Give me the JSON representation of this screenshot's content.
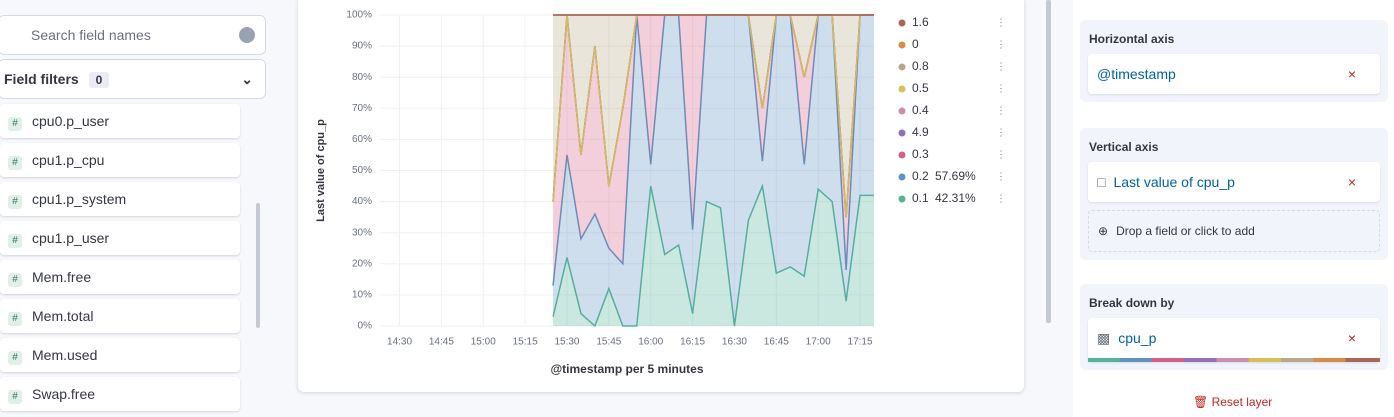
{
  "sidebar": {
    "search_placeholder": "Search field names",
    "filters_label": "Field filters",
    "filters_count": 0,
    "fields": [
      "cpu0.p_user",
      "cpu1.p_cpu",
      "cpu1.p_system",
      "cpu1.p_user",
      "Mem.free",
      "Mem.total",
      "Mem.used",
      "Swap.free"
    ]
  },
  "chart_data": {
    "type": "area",
    "stacked": true,
    "xlabel": "@timestamp per 5 minutes",
    "ylabel": "Last value of cpu_p",
    "x": [
      925,
      930,
      935,
      940,
      945,
      950,
      955,
      960,
      965,
      970,
      975,
      980,
      985,
      990,
      995,
      1000,
      1005,
      1010,
      1015,
      1020,
      1025,
      1030,
      1035,
      1040
    ],
    "xlim": [
      863,
      1040
    ],
    "xticks": [
      {
        "value": 870,
        "label": "14:30"
      },
      {
        "value": 885,
        "label": "14:45"
      },
      {
        "value": 900,
        "label": "15:00"
      },
      {
        "value": 915,
        "label": "15:15"
      },
      {
        "value": 930,
        "label": "15:30"
      },
      {
        "value": 945,
        "label": "15:45"
      },
      {
        "value": 960,
        "label": "16:00"
      },
      {
        "value": 975,
        "label": "16:15"
      },
      {
        "value": 990,
        "label": "16:30"
      },
      {
        "value": 1005,
        "label": "16:45"
      },
      {
        "value": 1020,
        "label": "17:00"
      },
      {
        "value": 1035,
        "label": "17:15"
      }
    ],
    "ylim": [
      0,
      100
    ],
    "yticks": [
      {
        "value": 0,
        "label": "0%"
      },
      {
        "value": 10,
        "label": "10%"
      },
      {
        "value": 20,
        "label": "20%"
      },
      {
        "value": 30,
        "label": "30%"
      },
      {
        "value": 40,
        "label": "40%"
      },
      {
        "value": 50,
        "label": "50%"
      },
      {
        "value": 60,
        "label": "60%"
      },
      {
        "value": 70,
        "label": "70%"
      },
      {
        "value": 80,
        "label": "80%"
      },
      {
        "value": 90,
        "label": "90%"
      },
      {
        "value": 100,
        "label": "100%"
      }
    ],
    "grid": true,
    "series": [
      {
        "name": "0.1",
        "color": "#54b399",
        "share_label": "42.31%",
        "values": [
          3,
          22,
          4,
          0,
          12,
          0,
          0,
          45,
          23,
          26,
          4,
          40,
          38,
          0,
          34,
          45,
          17,
          19,
          16,
          44,
          40,
          8,
          42,
          42
        ]
      },
      {
        "name": "0.2",
        "color": "#6092c0",
        "share_label": "57.69%",
        "values": [
          10,
          33,
          24,
          36,
          13,
          20,
          100,
          7,
          77,
          74,
          27,
          60,
          62,
          100,
          66,
          8,
          83,
          81,
          36,
          56,
          60,
          10,
          58,
          58
        ]
      },
      {
        "name": "0.3",
        "color": "#d36086",
        "values": [
          27,
          45,
          27,
          54,
          20,
          50,
          0,
          48,
          0,
          0,
          69,
          0,
          0,
          0,
          0,
          17,
          0,
          0,
          28,
          0,
          0,
          17,
          0,
          0
        ]
      },
      {
        "name": "4.9",
        "color": "#9170b8",
        "values": [
          0,
          0,
          0,
          0,
          0,
          0,
          0,
          0,
          0,
          0,
          0,
          0,
          0,
          0,
          0,
          0,
          0,
          0,
          0,
          0,
          0,
          0,
          0,
          0
        ]
      },
      {
        "name": "0.4",
        "color": "#ca8eae",
        "values": [
          0,
          0,
          0,
          0,
          0,
          0,
          0,
          0,
          0,
          0,
          0,
          0,
          0,
          0,
          0,
          0,
          0,
          0,
          0,
          0,
          0,
          0,
          0,
          0
        ]
      },
      {
        "name": "0.5",
        "color": "#d6bf57",
        "values": [
          0,
          0,
          0,
          0,
          0,
          0,
          0,
          0,
          0,
          0,
          0,
          0,
          0,
          0,
          0,
          0,
          0,
          0,
          0,
          0,
          0,
          0,
          0,
          0
        ]
      },
      {
        "name": "0.8",
        "color": "#b9a888",
        "values": [
          60,
          0,
          45,
          10,
          55,
          30,
          0,
          0,
          0,
          0,
          0,
          0,
          0,
          0,
          0,
          30,
          0,
          0,
          20,
          0,
          0,
          65,
          0,
          0
        ]
      },
      {
        "name": "0",
        "color": "#da8b45",
        "values": [
          0,
          0,
          0,
          0,
          0,
          0,
          0,
          0,
          0,
          0,
          0,
          0,
          0,
          0,
          0,
          0,
          0,
          0,
          0,
          0,
          0,
          0,
          0,
          0
        ]
      },
      {
        "name": "1.6",
        "color": "#aa6556",
        "values": [
          0,
          0,
          0,
          0,
          0,
          0,
          0,
          0,
          0,
          0,
          0,
          0,
          0,
          0,
          0,
          0,
          0,
          0,
          0,
          0,
          0,
          0,
          0,
          0
        ]
      }
    ]
  },
  "config": {
    "horizontal_title": "Horizontal axis",
    "horizontal_field": "@timestamp",
    "vertical_title": "Vertical axis",
    "vertical_field": "Last value of cpu_p",
    "drop_hint": "Drop a field or click to add",
    "breakdown_title": "Break down by",
    "breakdown_field": "cpu_p",
    "reset": "Reset layer"
  }
}
